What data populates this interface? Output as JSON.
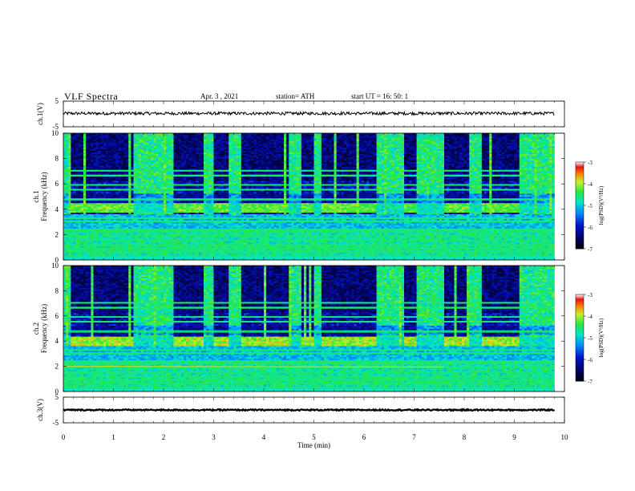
{
  "header": {
    "title": "VLF  Spectra",
    "date": "Apr. 3   , 2021",
    "station": "station= ATH",
    "start": "start  UT  =    16: 50: 1"
  },
  "chart_data": [
    {
      "type": "line",
      "id": "ch1",
      "ylabel": "ch.1(V)",
      "ylim": [
        -5,
        5
      ],
      "yticks": [
        "5",
        "-5"
      ],
      "x_range": [
        0,
        9.8
      ],
      "signal_level": 0.2,
      "signal_amplitude": 0.6,
      "color": "#000000"
    },
    {
      "type": "heatmap",
      "id": "ch1-spectrogram",
      "ylabel": "ch.1\nFrequency  (kHz)",
      "ylim": [
        0,
        10
      ],
      "yticks": [
        "0",
        "2",
        "4",
        "6",
        "8",
        "10"
      ],
      "x_range": [
        0,
        9.8
      ],
      "colorbar": {
        "label": "log(PSD)(V²/Hz)",
        "range": [
          -7,
          -3
        ],
        "ticks": [
          "-3",
          "-4",
          "-5",
          "-6",
          "-7"
        ]
      },
      "quiet_intervals": [
        [
          0.15,
          1.4
        ],
        [
          2.2,
          2.75
        ],
        [
          3.0,
          3.25
        ],
        [
          3.55,
          4.45
        ],
        [
          4.75,
          4.95
        ],
        [
          5.15,
          6.2
        ],
        [
          6.8,
          7.0
        ],
        [
          7.6,
          8.05
        ],
        [
          8.35,
          9.05
        ]
      ],
      "band_kHz": [
        3.7,
        4.4
      ]
    },
    {
      "type": "heatmap",
      "id": "ch2-spectrogram",
      "ylabel": "ch.2\nFrequency  (kHz)",
      "ylim": [
        0,
        10
      ],
      "yticks": [
        "0",
        "2",
        "4",
        "6",
        "8",
        "10"
      ],
      "x_range": [
        0,
        9.8
      ],
      "colorbar": {
        "label": "log(PSD)(V²/Hz)",
        "range": [
          -7,
          -3
        ],
        "ticks": [
          "-3",
          "-4",
          "-5",
          "-6",
          "-7"
        ]
      },
      "quiet_intervals": [
        [
          0.15,
          1.4
        ],
        [
          2.2,
          2.75
        ],
        [
          3.0,
          3.25
        ],
        [
          3.55,
          4.45
        ],
        [
          4.75,
          4.95
        ],
        [
          5.15,
          6.2
        ],
        [
          6.8,
          7.0
        ],
        [
          7.6,
          8.05
        ],
        [
          8.35,
          9.05
        ]
      ],
      "band_kHz": [
        3.6,
        4.3
      ]
    },
    {
      "type": "line",
      "id": "ch3",
      "ylabel": "ch.3(V)",
      "ylim": [
        -5,
        5
      ],
      "yticks": [
        "5",
        "-5"
      ],
      "x_range": [
        0,
        9.8
      ],
      "signal_level": 0.0,
      "signal_amplitude": 0.25,
      "color": "#000000"
    }
  ],
  "xaxis": {
    "label": "Time  (min)",
    "range": [
      0,
      10
    ],
    "ticks": [
      "0",
      "1",
      "2",
      "3",
      "4",
      "5",
      "6",
      "7",
      "8",
      "9",
      "10"
    ]
  }
}
